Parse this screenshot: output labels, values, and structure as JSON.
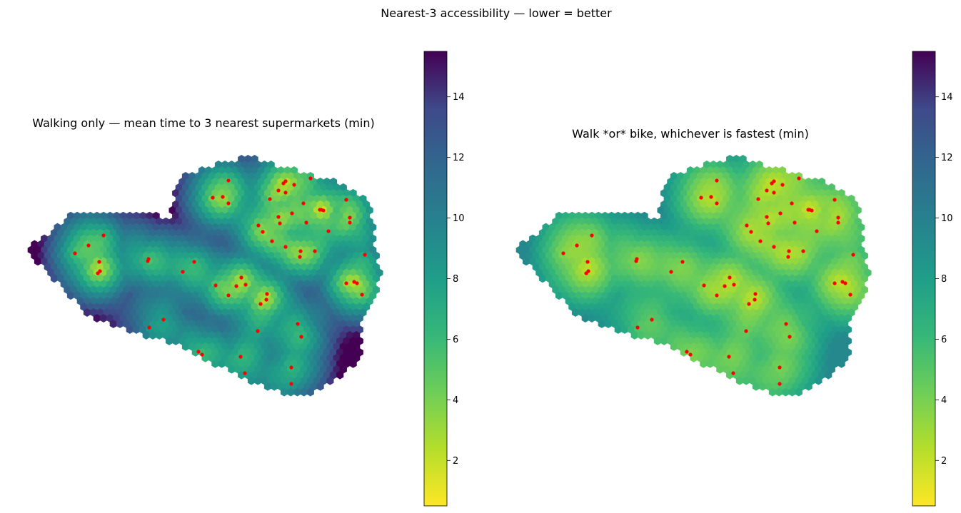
{
  "figure": {
    "suptitle": "Nearest-3 accessibility — lower = better"
  },
  "chart_data": [
    {
      "type": "heatmap",
      "title": "Walking only — mean time to 3 nearest supermarkets (min)",
      "colormap": "viridis_r",
      "value_range": [
        0.5,
        15.5
      ],
      "colorbar_ticks": [
        "2",
        "4",
        "6",
        "8",
        "10",
        "12",
        "14"
      ],
      "colorbar_tick_values": [
        2,
        4,
        6,
        8,
        10,
        12,
        14
      ],
      "cell_value_extent": [
        0.5,
        15.5
      ],
      "supermarket_marker_color": "#ff0000",
      "axes_visible": false
    },
    {
      "type": "heatmap",
      "title": "Walk *or* bike, whichever is fastest (min)",
      "colormap": "viridis_r",
      "value_range": [
        0.5,
        15.5
      ],
      "colorbar_ticks": [
        "2",
        "4",
        "6",
        "8",
        "10",
        "12",
        "14"
      ],
      "colorbar_tick_values": [
        2,
        4,
        6,
        8,
        10,
        12,
        14
      ],
      "cell_value_extent": [
        1.5,
        9.5
      ],
      "supermarket_marker_color": "#ff0000",
      "axes_visible": false
    }
  ]
}
